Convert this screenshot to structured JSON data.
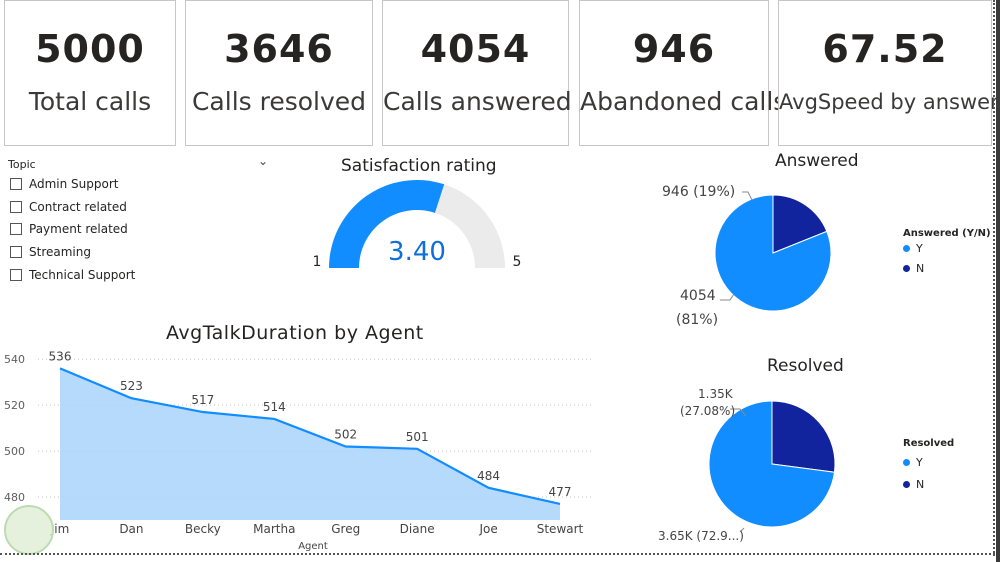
{
  "kpis": [
    {
      "value": "5000",
      "label": "Total calls"
    },
    {
      "value": "3646",
      "label": "Calls resolved"
    },
    {
      "value": "4054",
      "label": "Calls answered"
    },
    {
      "value": "946",
      "label": "Abandoned calls"
    },
    {
      "value": "67.52",
      "label": "AvgSpeed by answer"
    }
  ],
  "slicer": {
    "title": "Topic",
    "items": [
      "Admin Support",
      "Contract related",
      "Payment related",
      "Streaming",
      "Technical Support"
    ]
  },
  "colors": {
    "primary": "#118DFF",
    "dark": "#12239E",
    "area_fill": "#A9D3FA",
    "gauge_track": "#EBEBEB",
    "value_blue": "#0F6FD9"
  },
  "chart_data": [
    {
      "type": "gauge",
      "title": "Satisfaction rating",
      "value": 3.4,
      "value_label": "3.40",
      "min": 1,
      "max": 5,
      "min_label": "1",
      "max_label": "5"
    },
    {
      "type": "pie",
      "title": "Answered",
      "legend_title": "Answered (Y/N)",
      "legend_position": "right",
      "slices": [
        {
          "name": "Y",
          "value": 4054,
          "label_value": "4054",
          "label_pct": "(81%)"
        },
        {
          "name": "N",
          "value": 946,
          "label_value": "946",
          "label_pct": "(19%)"
        }
      ]
    },
    {
      "type": "pie",
      "title": "Resolved",
      "legend_title": "Resolved",
      "legend_position": "right",
      "slices": [
        {
          "name": "Y",
          "value": 3646,
          "label_value": "3.65K (72.9...)",
          "label_pct": ""
        },
        {
          "name": "N",
          "value": 1354,
          "label_value": "1.35K",
          "label_pct": "(27.08%)"
        }
      ]
    },
    {
      "type": "area",
      "title": "AvgTalkDuration by Agent",
      "xlabel": "Agent",
      "ylabel": "",
      "categories": [
        "Jim",
        "Dan",
        "Becky",
        "Martha",
        "Greg",
        "Diane",
        "Joe",
        "Stewart"
      ],
      "values": [
        536,
        523,
        517,
        514,
        502,
        501,
        484,
        477
      ],
      "yticks": [
        480,
        500,
        520,
        540
      ],
      "ylim": [
        470,
        544
      ],
      "grid": true
    }
  ]
}
